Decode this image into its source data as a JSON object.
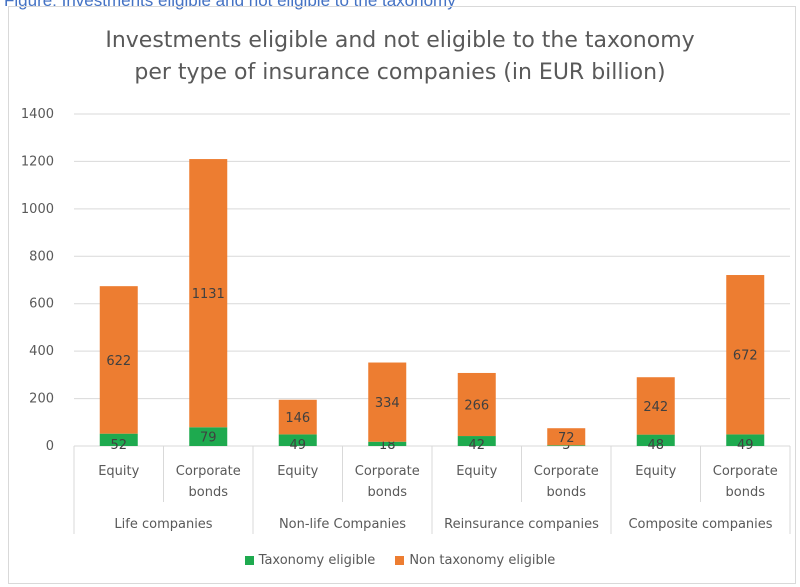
{
  "caption": "Figure: Investments eligible and not eligible to the taxonomy",
  "colors": {
    "eligible": "#1eaa4f",
    "non_eligible": "#ed7d31"
  },
  "chart_data": {
    "type": "bar",
    "stacked": true,
    "title_lines": [
      "Investments eligible and not eligible to the taxonomy",
      "per type of insurance companies (in EUR billion)"
    ],
    "ylim": [
      0,
      1400
    ],
    "yticks": [
      0,
      200,
      400,
      600,
      800,
      1000,
      1200,
      1400
    ],
    "grid": true,
    "legend_position": "bottom",
    "groups": [
      "Life companies",
      "Non-life Companies",
      "Reinsurance companies",
      "Composite companies"
    ],
    "categories": [
      {
        "group": "Life companies",
        "label": [
          "Equity"
        ]
      },
      {
        "group": "Life companies",
        "label": [
          "Corporate",
          "bonds"
        ]
      },
      {
        "group": "Non-life Companies",
        "label": [
          "Equity"
        ]
      },
      {
        "group": "Non-life Companies",
        "label": [
          "Corporate",
          "bonds"
        ]
      },
      {
        "group": "Reinsurance companies",
        "label": [
          "Equity"
        ]
      },
      {
        "group": "Reinsurance companies",
        "label": [
          "Corporate",
          "bonds"
        ]
      },
      {
        "group": "Composite companies",
        "label": [
          "Equity"
        ]
      },
      {
        "group": "Composite companies",
        "label": [
          "Corporate",
          "bonds"
        ]
      }
    ],
    "series": [
      {
        "name": "Taxonomy eligible",
        "values": [
          52,
          79,
          49,
          18,
          42,
          3,
          48,
          49
        ]
      },
      {
        "name": "Non taxonomy eligible",
        "values": [
          622,
          1131,
          146,
          334,
          266,
          72,
          242,
          672
        ]
      }
    ]
  }
}
